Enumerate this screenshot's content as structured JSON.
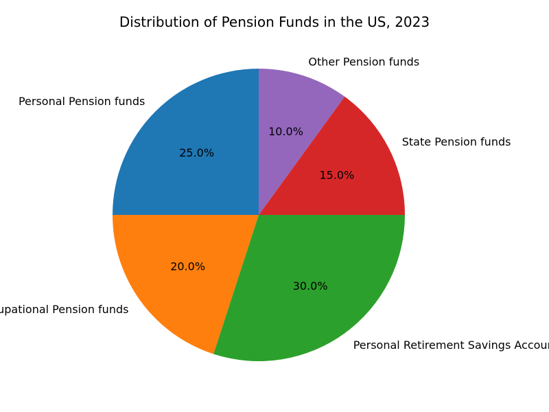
{
  "chart_data": {
    "type": "pie",
    "title": "Distribution of Pension Funds in the US, 2023",
    "categories": [
      "Personal Pension funds",
      "Occupational Pension funds",
      "Personal Retirement Savings Accounts",
      "State Pension funds",
      "Other Pension funds"
    ],
    "values": [
      25.0,
      20.0,
      30.0,
      15.0,
      10.0
    ],
    "percent_labels": [
      "25.0%",
      "20.0%",
      "30.0%",
      "15.0%",
      "10.0%"
    ],
    "colors": [
      "#1f77b4",
      "#ff7f0e",
      "#2ca02c",
      "#d62728",
      "#9467bd"
    ],
    "start_angle": "top",
    "direction": "counterclockwise",
    "legend": "none"
  }
}
